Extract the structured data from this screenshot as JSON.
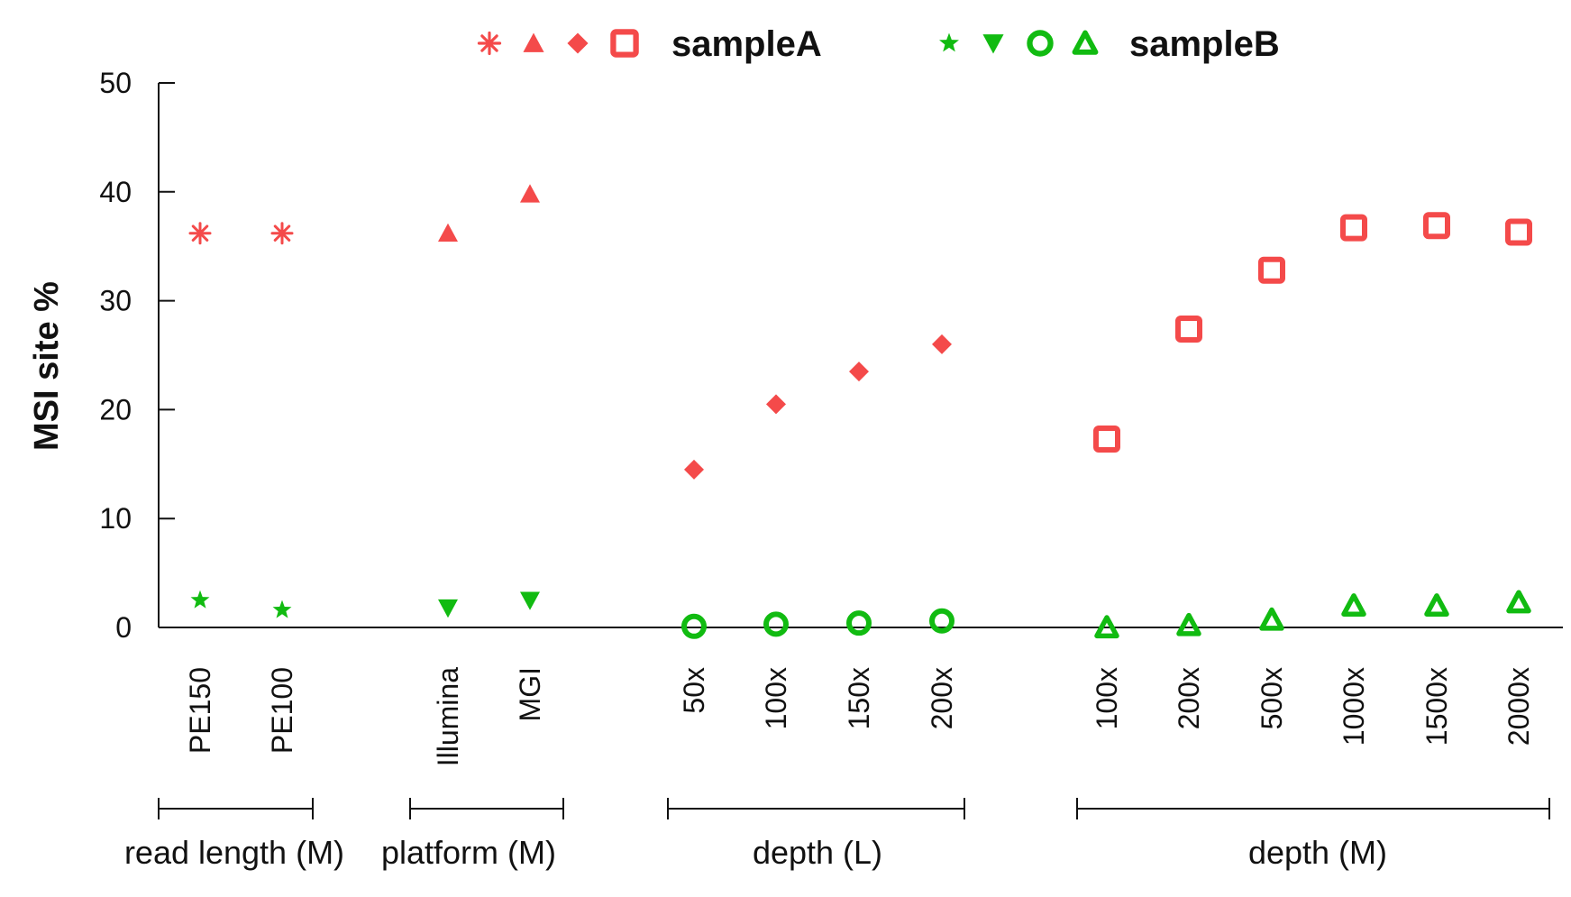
{
  "chart_data": {
    "type": "scatter",
    "ylabel": "MSI site %",
    "ylim": [
      0,
      50
    ],
    "yticks": [
      0,
      10,
      20,
      30,
      40,
      50
    ],
    "colors": {
      "sampleA": "#f44a4a",
      "sampleB": "#11bb11"
    },
    "legend": [
      {
        "name": "sampleA",
        "markers": [
          "asterisk",
          "triangle-up",
          "diamond",
          "square-open"
        ]
      },
      {
        "name": "sampleB",
        "markers": [
          "star",
          "triangle-down",
          "circle-open",
          "triangle-open"
        ]
      }
    ],
    "groups": [
      {
        "label": "read length (M)",
        "markerA": "asterisk",
        "markerB": "star",
        "categories": [
          "PE150",
          "PE100"
        ],
        "sampleA": [
          36.2,
          36.2
        ],
        "sampleB": [
          2.5,
          1.6
        ]
      },
      {
        "label": "platform (M)",
        "markerA": "triangle-up",
        "markerB": "triangle-down",
        "categories": [
          "Illumina",
          "MGI"
        ],
        "sampleA": [
          36.2,
          39.8
        ],
        "sampleB": [
          1.8,
          2.5
        ]
      },
      {
        "label": "depth (L)",
        "markerA": "diamond",
        "markerB": "circle-open",
        "categories": [
          "50x",
          "100x",
          "150x",
          "200x"
        ],
        "sampleA": [
          14.5,
          20.5,
          23.5,
          26.0
        ],
        "sampleB": [
          0.1,
          0.3,
          0.4,
          0.6
        ]
      },
      {
        "label": "depth (M)",
        "markerA": "square-open",
        "markerB": "triangle-open",
        "categories": [
          "100x",
          "200x",
          "500x",
          "1000x",
          "1500x",
          "2000x"
        ],
        "sampleA": [
          17.3,
          27.4,
          32.8,
          36.7,
          36.9,
          36.3
        ],
        "sampleB": [
          0.0,
          0.2,
          0.7,
          2.0,
          2.0,
          2.3
        ]
      }
    ]
  }
}
